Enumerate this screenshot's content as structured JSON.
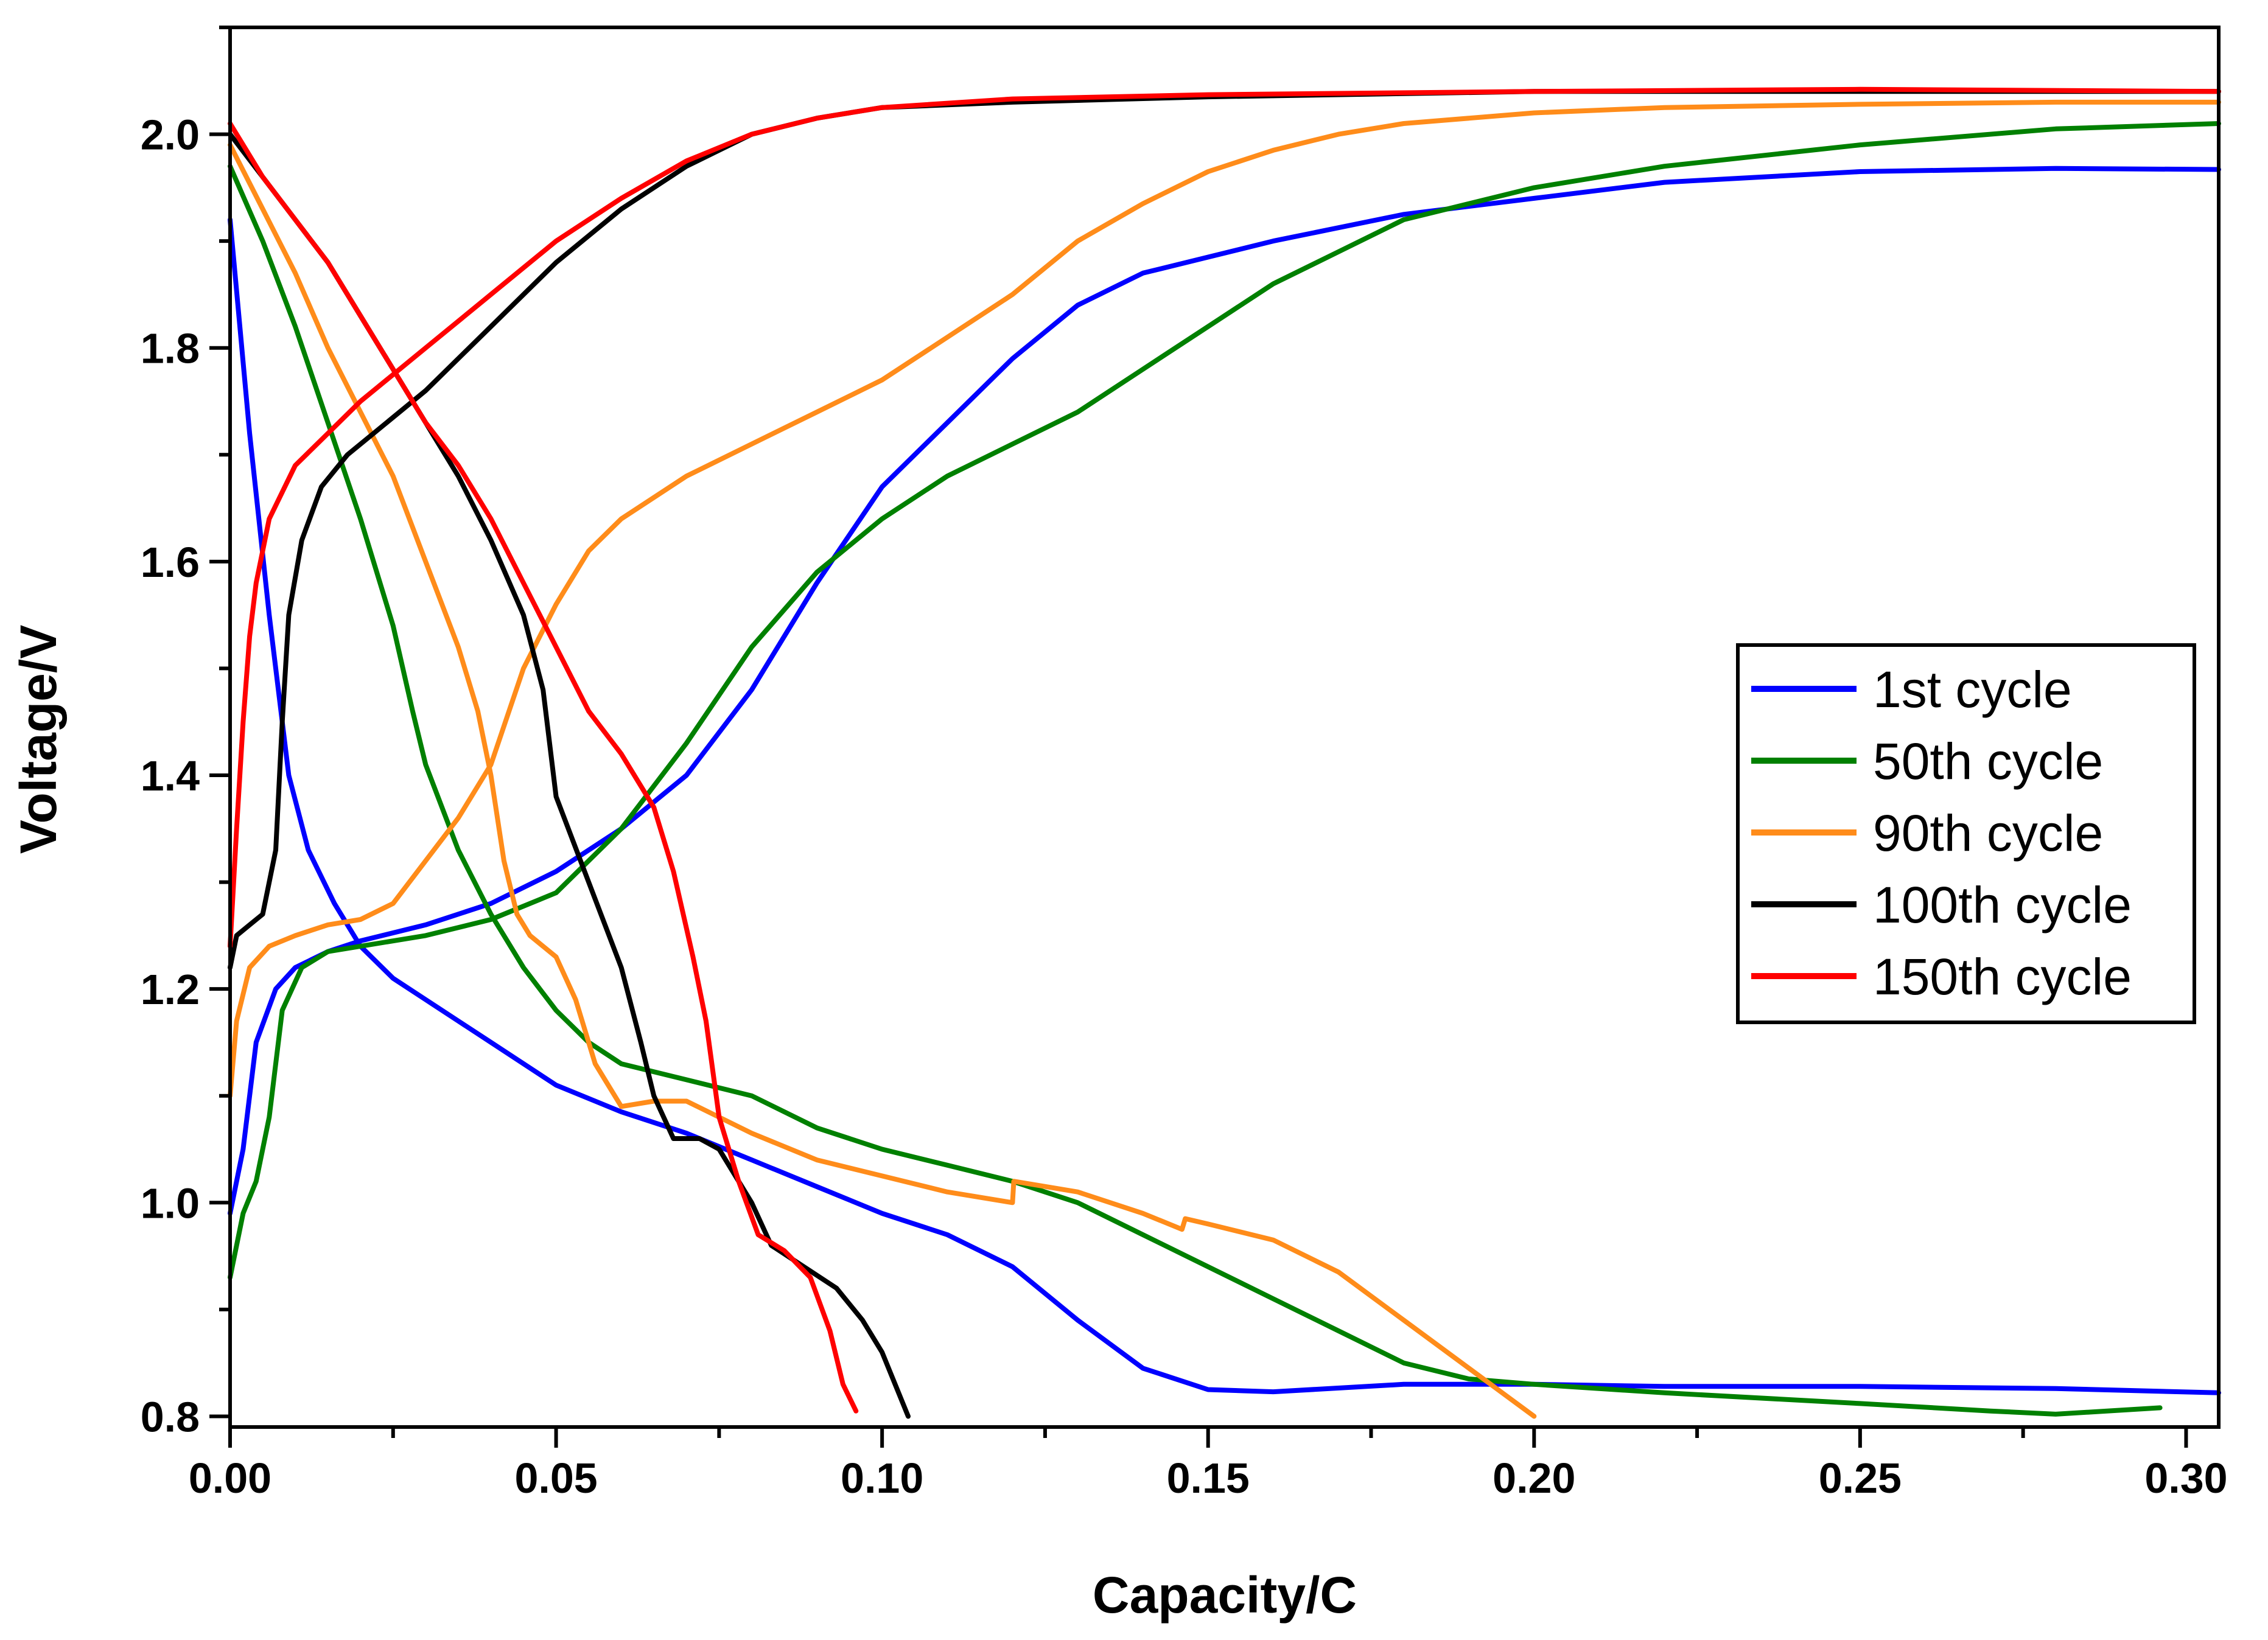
{
  "chart_data": {
    "type": "line",
    "title": "",
    "xlabel": "Capacity/C",
    "ylabel": "Voltage/V",
    "xlim": [
      0,
      0.305
    ],
    "ylim": [
      0.79,
      2.1
    ],
    "xticks": [
      0.0,
      0.05,
      0.1,
      0.15,
      0.2,
      0.25,
      0.3
    ],
    "xtick_labels": [
      "0.00",
      "0.05",
      "0.10",
      "0.15",
      "0.20",
      "0.25",
      "0.30"
    ],
    "yticks": [
      0.8,
      1.0,
      1.2,
      1.4,
      1.6,
      1.8,
      2.0
    ],
    "ytick_labels": [
      "0.8",
      "1.0",
      "1.2",
      "1.4",
      "1.6",
      "1.8",
      "2.0"
    ],
    "legend_position": "center-right",
    "series": [
      {
        "name": "1st cycle",
        "color": "#0000ff",
        "charge": [
          [
            0.0,
            0.99
          ],
          [
            0.002,
            1.05
          ],
          [
            0.004,
            1.15
          ],
          [
            0.007,
            1.2
          ],
          [
            0.01,
            1.22
          ],
          [
            0.015,
            1.235
          ],
          [
            0.02,
            1.245
          ],
          [
            0.03,
            1.26
          ],
          [
            0.04,
            1.28
          ],
          [
            0.05,
            1.31
          ],
          [
            0.06,
            1.35
          ],
          [
            0.07,
            1.4
          ],
          [
            0.08,
            1.48
          ],
          [
            0.09,
            1.58
          ],
          [
            0.1,
            1.67
          ],
          [
            0.11,
            1.73
          ],
          [
            0.12,
            1.79
          ],
          [
            0.13,
            1.84
          ],
          [
            0.14,
            1.87
          ],
          [
            0.15,
            1.885
          ],
          [
            0.16,
            1.9
          ],
          [
            0.18,
            1.925
          ],
          [
            0.2,
            1.94
          ],
          [
            0.22,
            1.955
          ],
          [
            0.25,
            1.965
          ],
          [
            0.28,
            1.968
          ],
          [
            0.305,
            1.967
          ]
        ],
        "discharge": [
          [
            0.0,
            1.92
          ],
          [
            0.003,
            1.72
          ],
          [
            0.006,
            1.55
          ],
          [
            0.009,
            1.4
          ],
          [
            0.012,
            1.33
          ],
          [
            0.016,
            1.28
          ],
          [
            0.02,
            1.24
          ],
          [
            0.025,
            1.21
          ],
          [
            0.03,
            1.19
          ],
          [
            0.035,
            1.17
          ],
          [
            0.04,
            1.15
          ],
          [
            0.05,
            1.11
          ],
          [
            0.06,
            1.085
          ],
          [
            0.07,
            1.065
          ],
          [
            0.08,
            1.04
          ],
          [
            0.09,
            1.015
          ],
          [
            0.1,
            0.99
          ],
          [
            0.11,
            0.97
          ],
          [
            0.12,
            0.94
          ],
          [
            0.13,
            0.89
          ],
          [
            0.14,
            0.845
          ],
          [
            0.15,
            0.825
          ],
          [
            0.16,
            0.823
          ],
          [
            0.18,
            0.83
          ],
          [
            0.2,
            0.83
          ],
          [
            0.22,
            0.828
          ],
          [
            0.25,
            0.828
          ],
          [
            0.28,
            0.826
          ],
          [
            0.305,
            0.822
          ]
        ]
      },
      {
        "name": "50th cycle",
        "color": "#008000",
        "charge": [
          [
            0.0,
            0.93
          ],
          [
            0.002,
            0.99
          ],
          [
            0.004,
            1.02
          ],
          [
            0.006,
            1.08
          ],
          [
            0.008,
            1.18
          ],
          [
            0.011,
            1.22
          ],
          [
            0.015,
            1.235
          ],
          [
            0.02,
            1.24
          ],
          [
            0.03,
            1.25
          ],
          [
            0.04,
            1.265
          ],
          [
            0.05,
            1.29
          ],
          [
            0.06,
            1.35
          ],
          [
            0.07,
            1.43
          ],
          [
            0.08,
            1.52
          ],
          [
            0.09,
            1.59
          ],
          [
            0.1,
            1.64
          ],
          [
            0.11,
            1.68
          ],
          [
            0.12,
            1.71
          ],
          [
            0.13,
            1.74
          ],
          [
            0.14,
            1.78
          ],
          [
            0.15,
            1.82
          ],
          [
            0.16,
            1.86
          ],
          [
            0.17,
            1.89
          ],
          [
            0.18,
            1.92
          ],
          [
            0.2,
            1.95
          ],
          [
            0.22,
            1.97
          ],
          [
            0.25,
            1.99
          ],
          [
            0.28,
            2.005
          ],
          [
            0.305,
            2.01
          ]
        ],
        "discharge": [
          [
            0.0,
            1.97
          ],
          [
            0.005,
            1.9
          ],
          [
            0.01,
            1.82
          ],
          [
            0.015,
            1.73
          ],
          [
            0.02,
            1.64
          ],
          [
            0.025,
            1.54
          ],
          [
            0.028,
            1.46
          ],
          [
            0.03,
            1.41
          ],
          [
            0.035,
            1.33
          ],
          [
            0.04,
            1.27
          ],
          [
            0.045,
            1.22
          ],
          [
            0.05,
            1.18
          ],
          [
            0.055,
            1.15
          ],
          [
            0.06,
            1.13
          ],
          [
            0.07,
            1.115
          ],
          [
            0.08,
            1.1
          ],
          [
            0.09,
            1.07
          ],
          [
            0.1,
            1.05
          ],
          [
            0.11,
            1.035
          ],
          [
            0.12,
            1.02
          ],
          [
            0.13,
            1.0
          ],
          [
            0.14,
            0.97
          ],
          [
            0.15,
            0.94
          ],
          [
            0.16,
            0.91
          ],
          [
            0.17,
            0.88
          ],
          [
            0.18,
            0.85
          ],
          [
            0.19,
            0.835
          ],
          [
            0.2,
            0.83
          ],
          [
            0.22,
            0.822
          ],
          [
            0.25,
            0.812
          ],
          [
            0.27,
            0.805
          ],
          [
            0.28,
            0.802
          ],
          [
            0.296,
            0.808
          ]
        ]
      },
      {
        "name": "90th cycle",
        "color": "#ff8c1a",
        "charge": [
          [
            0.0,
            1.1
          ],
          [
            0.001,
            1.17
          ],
          [
            0.003,
            1.22
          ],
          [
            0.006,
            1.24
          ],
          [
            0.01,
            1.25
          ],
          [
            0.015,
            1.26
          ],
          [
            0.02,
            1.265
          ],
          [
            0.025,
            1.28
          ],
          [
            0.03,
            1.32
          ],
          [
            0.035,
            1.36
          ],
          [
            0.04,
            1.41
          ],
          [
            0.045,
            1.5
          ],
          [
            0.05,
            1.56
          ],
          [
            0.055,
            1.61
          ],
          [
            0.06,
            1.64
          ],
          [
            0.07,
            1.68
          ],
          [
            0.08,
            1.71
          ],
          [
            0.09,
            1.74
          ],
          [
            0.1,
            1.77
          ],
          [
            0.11,
            1.81
          ],
          [
            0.12,
            1.85
          ],
          [
            0.13,
            1.9
          ],
          [
            0.14,
            1.935
          ],
          [
            0.15,
            1.965
          ],
          [
            0.16,
            1.985
          ],
          [
            0.17,
            2.0
          ],
          [
            0.18,
            2.01
          ],
          [
            0.2,
            2.02
          ],
          [
            0.22,
            2.025
          ],
          [
            0.25,
            2.028
          ],
          [
            0.28,
            2.03
          ],
          [
            0.305,
            2.03
          ]
        ],
        "discharge": [
          [
            0.0,
            1.99
          ],
          [
            0.005,
            1.93
          ],
          [
            0.01,
            1.87
          ],
          [
            0.015,
            1.8
          ],
          [
            0.02,
            1.74
          ],
          [
            0.025,
            1.68
          ],
          [
            0.03,
            1.6
          ],
          [
            0.035,
            1.52
          ],
          [
            0.038,
            1.46
          ],
          [
            0.04,
            1.4
          ],
          [
            0.042,
            1.32
          ],
          [
            0.044,
            1.27
          ],
          [
            0.046,
            1.25
          ],
          [
            0.05,
            1.23
          ],
          [
            0.053,
            1.19
          ],
          [
            0.056,
            1.13
          ],
          [
            0.06,
            1.09
          ],
          [
            0.065,
            1.095
          ],
          [
            0.07,
            1.095
          ],
          [
            0.075,
            1.08
          ],
          [
            0.08,
            1.065
          ],
          [
            0.09,
            1.04
          ],
          [
            0.1,
            1.025
          ],
          [
            0.11,
            1.01
          ],
          [
            0.12,
            1.0
          ],
          [
            0.1202,
            1.02
          ],
          [
            0.13,
            1.01
          ],
          [
            0.14,
            0.99
          ],
          [
            0.146,
            0.975
          ],
          [
            0.1465,
            0.985
          ],
          [
            0.15,
            0.98
          ],
          [
            0.16,
            0.965
          ],
          [
            0.17,
            0.935
          ],
          [
            0.18,
            0.89
          ],
          [
            0.19,
            0.845
          ],
          [
            0.2,
            0.8
          ]
        ]
      },
      {
        "name": "100th cycle",
        "color": "#000000",
        "charge": [
          [
            0.0,
            1.22
          ],
          [
            0.001,
            1.25
          ],
          [
            0.003,
            1.26
          ],
          [
            0.005,
            1.27
          ],
          [
            0.007,
            1.33
          ],
          [
            0.008,
            1.45
          ],
          [
            0.009,
            1.55
          ],
          [
            0.011,
            1.62
          ],
          [
            0.014,
            1.67
          ],
          [
            0.018,
            1.7
          ],
          [
            0.022,
            1.72
          ],
          [
            0.03,
            1.76
          ],
          [
            0.04,
            1.82
          ],
          [
            0.05,
            1.88
          ],
          [
            0.06,
            1.93
          ],
          [
            0.07,
            1.97
          ],
          [
            0.08,
            2.0
          ],
          [
            0.09,
            2.015
          ],
          [
            0.1,
            2.025
          ],
          [
            0.12,
            2.03
          ],
          [
            0.15,
            2.035
          ],
          [
            0.2,
            2.04
          ],
          [
            0.25,
            2.04
          ],
          [
            0.305,
            2.04
          ]
        ],
        "discharge": [
          [
            0.0,
            2.0
          ],
          [
            0.005,
            1.96
          ],
          [
            0.01,
            1.92
          ],
          [
            0.015,
            1.88
          ],
          [
            0.02,
            1.83
          ],
          [
            0.025,
            1.78
          ],
          [
            0.03,
            1.73
          ],
          [
            0.035,
            1.68
          ],
          [
            0.04,
            1.62
          ],
          [
            0.045,
            1.55
          ],
          [
            0.048,
            1.48
          ],
          [
            0.05,
            1.38
          ],
          [
            0.055,
            1.3
          ],
          [
            0.06,
            1.22
          ],
          [
            0.063,
            1.15
          ],
          [
            0.065,
            1.1
          ],
          [
            0.068,
            1.06
          ],
          [
            0.072,
            1.06
          ],
          [
            0.075,
            1.05
          ],
          [
            0.08,
            1.0
          ],
          [
            0.083,
            0.96
          ],
          [
            0.088,
            0.94
          ],
          [
            0.093,
            0.92
          ],
          [
            0.097,
            0.89
          ],
          [
            0.1,
            0.86
          ],
          [
            0.104,
            0.8
          ]
        ]
      },
      {
        "name": "150th cycle",
        "color": "#ff0000",
        "charge": [
          [
            0.0,
            1.24
          ],
          [
            0.001,
            1.35
          ],
          [
            0.002,
            1.45
          ],
          [
            0.003,
            1.53
          ],
          [
            0.004,
            1.58
          ],
          [
            0.006,
            1.64
          ],
          [
            0.01,
            1.69
          ],
          [
            0.015,
            1.72
          ],
          [
            0.02,
            1.75
          ],
          [
            0.03,
            1.8
          ],
          [
            0.04,
            1.85
          ],
          [
            0.05,
            1.9
          ],
          [
            0.06,
            1.94
          ],
          [
            0.07,
            1.975
          ],
          [
            0.08,
            2.0
          ],
          [
            0.09,
            2.015
          ],
          [
            0.1,
            2.025
          ],
          [
            0.12,
            2.033
          ],
          [
            0.15,
            2.037
          ],
          [
            0.2,
            2.04
          ],
          [
            0.25,
            2.042
          ],
          [
            0.305,
            2.04
          ]
        ],
        "discharge": [
          [
            0.0,
            2.01
          ],
          [
            0.005,
            1.96
          ],
          [
            0.01,
            1.92
          ],
          [
            0.015,
            1.88
          ],
          [
            0.02,
            1.83
          ],
          [
            0.025,
            1.78
          ],
          [
            0.03,
            1.73
          ],
          [
            0.035,
            1.69
          ],
          [
            0.04,
            1.64
          ],
          [
            0.045,
            1.58
          ],
          [
            0.05,
            1.52
          ],
          [
            0.055,
            1.46
          ],
          [
            0.06,
            1.42
          ],
          [
            0.065,
            1.37
          ],
          [
            0.068,
            1.31
          ],
          [
            0.071,
            1.23
          ],
          [
            0.073,
            1.17
          ],
          [
            0.075,
            1.08
          ],
          [
            0.078,
            1.02
          ],
          [
            0.081,
            0.97
          ],
          [
            0.085,
            0.955
          ],
          [
            0.089,
            0.93
          ],
          [
            0.092,
            0.88
          ],
          [
            0.094,
            0.83
          ],
          [
            0.096,
            0.805
          ]
        ]
      }
    ]
  }
}
